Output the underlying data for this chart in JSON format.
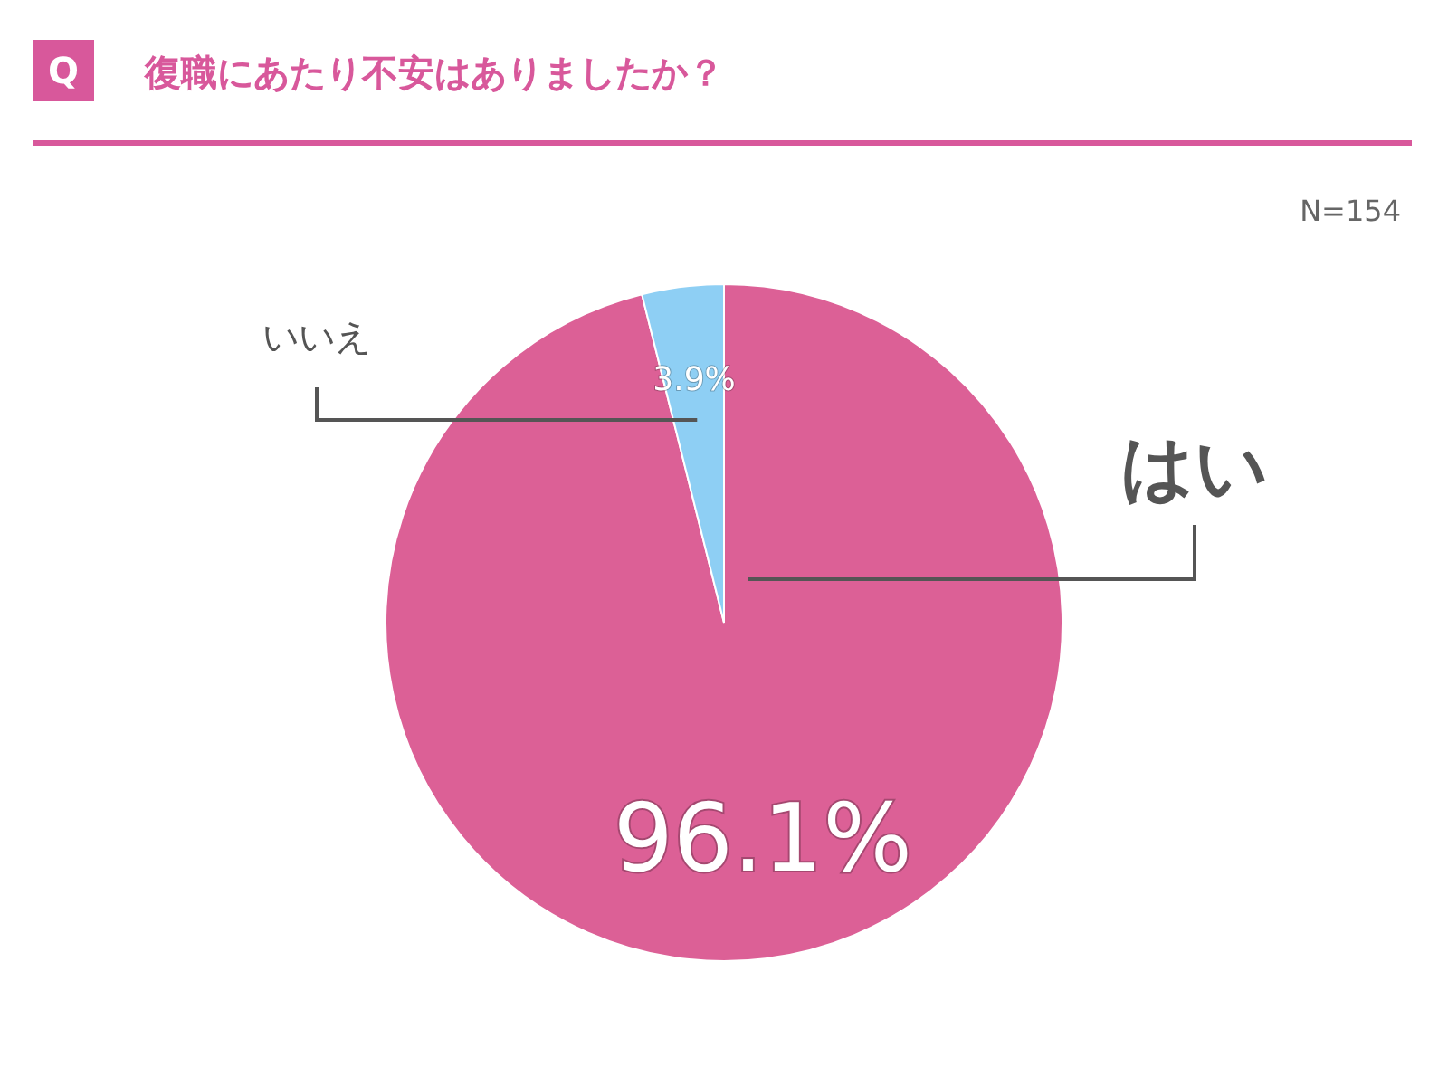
{
  "chart_data": {
    "type": "pie",
    "title": "復職にあたり不安はありましたか？",
    "annotations": [
      "Q",
      "N=154"
    ],
    "categories": [
      "はい",
      "いいえ"
    ],
    "values": [
      96.1,
      3.9
    ],
    "value_labels": [
      "96.1%",
      "3.9%"
    ],
    "colors": [
      "#dc6096",
      "#8ecff4"
    ]
  }
}
